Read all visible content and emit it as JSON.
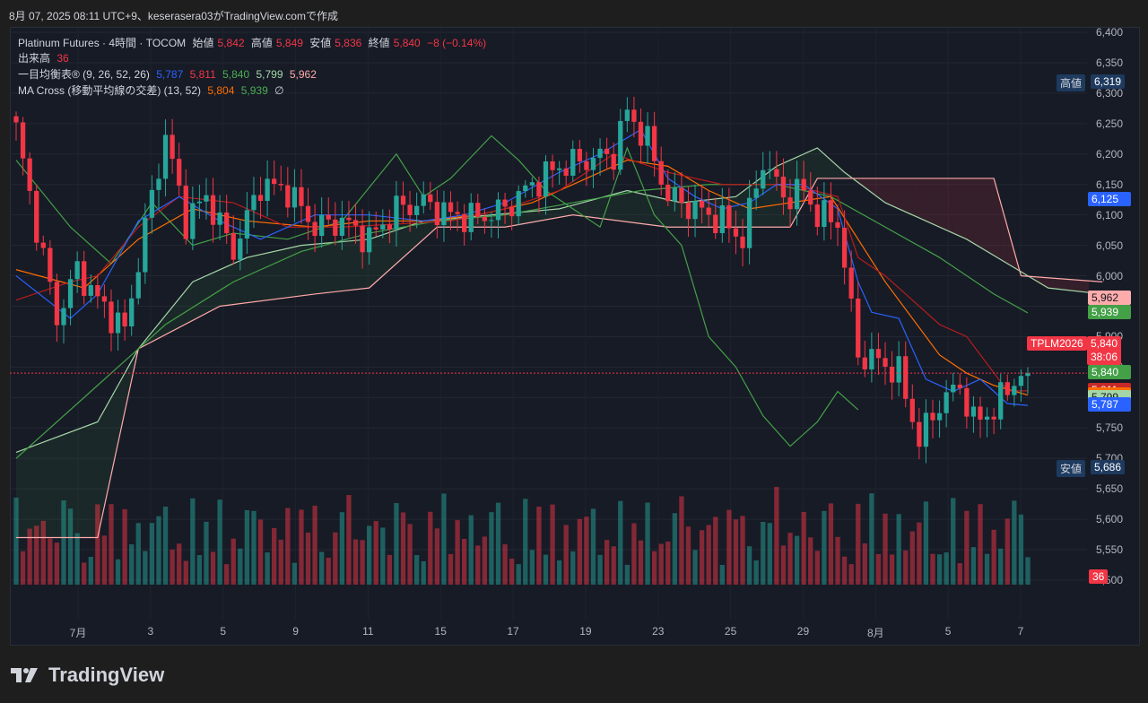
{
  "header": {
    "capture_line": "8月 07, 2025 08:11 UTC+9、keserasera03がTradingView.comで作成"
  },
  "legend": {
    "instrument": "Platinum Futures · 4時間 · TOCOM",
    "open_label": "始値",
    "open": "5,842",
    "high_label": "高値",
    "high": "5,849",
    "low_label": "安値",
    "low": "5,836",
    "close_label": "終値",
    "close": "5,840",
    "change": "−8 (−0.14%)",
    "volume_label": "出来高",
    "volume": "36",
    "ichimoku_label": "一目均衡表® (9, 26, 52, 26)",
    "ichimoku_vals": [
      "5,787",
      "5,811",
      "5,840",
      "5,799",
      "5,962"
    ],
    "ma_label": "MA Cross (移動平均線の交差) (13, 52)",
    "ma_vals": [
      "5,804",
      "5,939"
    ],
    "ma_extra": "∅"
  },
  "price_axis": {
    "ticks": [
      "6,400",
      "6,350",
      "6,300",
      "6,250",
      "6,200",
      "6,150",
      "6,100",
      "6,050",
      "6,000",
      "5,950",
      "5,900",
      "5,850",
      "5,800",
      "5,750",
      "5,700",
      "5,650",
      "5,600",
      "5,550",
      "5,500"
    ],
    "high_label": "高値",
    "high_value": "6,319",
    "low_label": "安値",
    "low_value": "5,686",
    "symbol_tag": "TPLM2026",
    "last_price": "5,840",
    "countdown": "38:06",
    "tags": [
      {
        "value": "6,125",
        "color": "#2962ff",
        "text_color": "#ffffff"
      },
      {
        "value": "5,962",
        "color": "#ffabab",
        "text_color": "#131722"
      },
      {
        "value": "5,939",
        "color": "#43a047",
        "text_color": "#ffffff"
      },
      {
        "value": "5,840",
        "color": "#43a047",
        "text_color": "#ffffff"
      },
      {
        "value": "5,811",
        "color": "#c62828",
        "text_color": "#ffffff"
      },
      {
        "value": "5,804",
        "color": "#ff6d00",
        "text_color": "#ffffff"
      },
      {
        "value": "5,799",
        "color": "#a5d6a7",
        "text_color": "#131722"
      },
      {
        "value": "5,787",
        "color": "#2962ff",
        "text_color": "#ffffff"
      }
    ],
    "volume_tag": "36"
  },
  "time_axis": {
    "labels": [
      "7月",
      "3",
      "5",
      "9",
      "11",
      "15",
      "17",
      "19",
      "23",
      "25",
      "29",
      "8月",
      "5",
      "7"
    ]
  },
  "brand": {
    "name": "TradingView"
  },
  "colors": {
    "up": "#26a69a",
    "down": "#f23645",
    "tenkan": "#2962ff",
    "kijun": "#b71c1c",
    "span_a": "#a5d6a7",
    "span_b": "#ffabab",
    "lagging": "#43a047",
    "ma_fast": "#ff6d00",
    "ma_slow": "#43a047",
    "background": "#171b26"
  },
  "chart_data": {
    "type": "candlestick",
    "timeframe": "4h",
    "ylim": [
      5500,
      6400
    ],
    "anchors": [
      {
        "t": 0,
        "p": 6240
      },
      {
        "t": 3,
        "p": 6080
      },
      {
        "t": 6,
        "p": 5930
      },
      {
        "t": 9,
        "p": 6010
      },
      {
        "t": 12,
        "p": 5960
      },
      {
        "t": 16,
        "p": 5910
      },
      {
        "t": 19,
        "p": 6080
      },
      {
        "t": 22,
        "p": 6230
      },
      {
        "t": 25,
        "p": 6090
      },
      {
        "t": 28,
        "p": 6130
      },
      {
        "t": 32,
        "p": 6040
      },
      {
        "t": 36,
        "p": 6150
      },
      {
        "t": 40,
        "p": 6140
      },
      {
        "t": 44,
        "p": 6080
      },
      {
        "t": 48,
        "p": 6090
      },
      {
        "t": 52,
        "p": 6060
      },
      {
        "t": 56,
        "p": 6110
      },
      {
        "t": 60,
        "p": 6120
      },
      {
        "t": 64,
        "p": 6100
      },
      {
        "t": 68,
        "p": 6095
      },
      {
        "t": 72,
        "p": 6110
      },
      {
        "t": 76,
        "p": 6150
      },
      {
        "t": 80,
        "p": 6180
      },
      {
        "t": 84,
        "p": 6190
      },
      {
        "t": 88,
        "p": 6200
      },
      {
        "t": 90,
        "p": 6270
      },
      {
        "t": 93,
        "p": 6220
      },
      {
        "t": 96,
        "p": 6130
      },
      {
        "t": 100,
        "p": 6110
      },
      {
        "t": 104,
        "p": 6090
      },
      {
        "t": 107,
        "p": 6060
      },
      {
        "t": 110,
        "p": 6190
      },
      {
        "t": 113,
        "p": 6130
      },
      {
        "t": 116,
        "p": 6140
      },
      {
        "t": 118,
        "p": 6100
      },
      {
        "t": 121,
        "p": 6090
      },
      {
        "t": 124,
        "p": 5870
      },
      {
        "t": 127,
        "p": 5860
      },
      {
        "t": 130,
        "p": 5840
      },
      {
        "t": 133,
        "p": 5730
      },
      {
        "t": 136,
        "p": 5790
      },
      {
        "t": 139,
        "p": 5820
      },
      {
        "t": 141,
        "p": 5760
      },
      {
        "t": 144,
        "p": 5780
      },
      {
        "t": 147,
        "p": 5830
      },
      {
        "t": 149,
        "p": 5840
      }
    ],
    "tenkan": [
      [
        0,
        6000
      ],
      [
        8,
        5930
      ],
      [
        12,
        5970
      ],
      [
        18,
        6090
      ],
      [
        24,
        6130
      ],
      [
        30,
        6090
      ],
      [
        36,
        6060
      ],
      [
        44,
        6100
      ],
      [
        52,
        6100
      ],
      [
        60,
        6090
      ],
      [
        66,
        6100
      ],
      [
        72,
        6120
      ],
      [
        80,
        6170
      ],
      [
        86,
        6200
      ],
      [
        92,
        6240
      ],
      [
        96,
        6160
      ],
      [
        100,
        6130
      ],
      [
        104,
        6110
      ],
      [
        108,
        6120
      ],
      [
        112,
        6150
      ],
      [
        116,
        6150
      ],
      [
        121,
        6110
      ],
      [
        124,
        5990
      ],
      [
        126,
        5940
      ],
      [
        130,
        5930
      ],
      [
        134,
        5830
      ],
      [
        138,
        5810
      ],
      [
        142,
        5830
      ],
      [
        146,
        5790
      ],
      [
        149,
        5787
      ]
    ],
    "kijun": [
      [
        0,
        5960
      ],
      [
        8,
        5990
      ],
      [
        12,
        6000
      ],
      [
        18,
        6080
      ],
      [
        24,
        6130
      ],
      [
        32,
        6120
      ],
      [
        40,
        6080
      ],
      [
        48,
        6080
      ],
      [
        56,
        6085
      ],
      [
        64,
        6090
      ],
      [
        72,
        6110
      ],
      [
        80,
        6140
      ],
      [
        88,
        6200
      ],
      [
        96,
        6170
      ],
      [
        104,
        6150
      ],
      [
        114,
        6150
      ],
      [
        121,
        6130
      ],
      [
        124,
        6030
      ],
      [
        128,
        6000
      ],
      [
        132,
        5960
      ],
      [
        136,
        5920
      ],
      [
        140,
        5900
      ],
      [
        146,
        5811
      ],
      [
        149,
        5811
      ]
    ],
    "span_a": [
      [
        0,
        5710
      ],
      [
        12,
        5760
      ],
      [
        18,
        5880
      ],
      [
        26,
        5990
      ],
      [
        34,
        6030
      ],
      [
        42,
        6050
      ],
      [
        52,
        6060
      ],
      [
        60,
        6090
      ],
      [
        70,
        6100
      ],
      [
        80,
        6110
      ],
      [
        90,
        6140
      ],
      [
        98,
        6120
      ],
      [
        106,
        6130
      ],
      [
        112,
        6180
      ],
      [
        118,
        6210
      ],
      [
        122,
        6170
      ],
      [
        128,
        6120
      ],
      [
        134,
        6090
      ],
      [
        140,
        6060
      ],
      [
        146,
        6020
      ],
      [
        152,
        5980
      ],
      [
        160,
        5970
      ]
    ],
    "span_b": [
      [
        0,
        5570
      ],
      [
        12,
        5570
      ],
      [
        18,
        5880
      ],
      [
        30,
        5950
      ],
      [
        44,
        5970
      ],
      [
        52,
        5980
      ],
      [
        62,
        6080
      ],
      [
        72,
        6080
      ],
      [
        82,
        6100
      ],
      [
        96,
        6080
      ],
      [
        114,
        6080
      ],
      [
        118,
        6160
      ],
      [
        130,
        6160
      ],
      [
        144,
        6160
      ],
      [
        148,
        6000
      ],
      [
        160,
        5990
      ]
    ],
    "lagging": [
      [
        0,
        6190
      ],
      [
        8,
        6080
      ],
      [
        14,
        6020
      ],
      [
        20,
        6120
      ],
      [
        26,
        6050
      ],
      [
        32,
        6070
      ],
      [
        40,
        6060
      ],
      [
        48,
        6090
      ],
      [
        56,
        6200
      ],
      [
        60,
        6130
      ],
      [
        64,
        6160
      ],
      [
        70,
        6230
      ],
      [
        74,
        6190
      ],
      [
        78,
        6140
      ],
      [
        82,
        6110
      ],
      [
        86,
        6080
      ],
      [
        90,
        6210
      ],
      [
        94,
        6100
      ],
      [
        98,
        6050
      ],
      [
        102,
        5900
      ],
      [
        106,
        5850
      ],
      [
        110,
        5770
      ],
      [
        114,
        5720
      ],
      [
        118,
        5760
      ],
      [
        121,
        5810
      ],
      [
        124,
        5780
      ]
    ],
    "ma_fast": [
      [
        0,
        6010
      ],
      [
        10,
        5980
      ],
      [
        18,
        6060
      ],
      [
        26,
        6110
      ],
      [
        34,
        6090
      ],
      [
        44,
        6080
      ],
      [
        52,
        6090
      ],
      [
        60,
        6090
      ],
      [
        68,
        6100
      ],
      [
        76,
        6120
      ],
      [
        84,
        6160
      ],
      [
        90,
        6190
      ],
      [
        96,
        6180
      ],
      [
        102,
        6140
      ],
      [
        108,
        6110
      ],
      [
        114,
        6120
      ],
      [
        120,
        6130
      ],
      [
        124,
        6060
      ],
      [
        128,
        5990
      ],
      [
        132,
        5930
      ],
      [
        136,
        5870
      ],
      [
        140,
        5840
      ],
      [
        144,
        5820
      ],
      [
        149,
        5804
      ]
    ],
    "ma_slow": [
      [
        0,
        5700
      ],
      [
        12,
        5820
      ],
      [
        22,
        5920
      ],
      [
        32,
        5990
      ],
      [
        42,
        6040
      ],
      [
        52,
        6070
      ],
      [
        62,
        6090
      ],
      [
        72,
        6100
      ],
      [
        82,
        6120
      ],
      [
        92,
        6140
      ],
      [
        102,
        6150
      ],
      [
        112,
        6150
      ],
      [
        120,
        6130
      ],
      [
        128,
        6080
      ],
      [
        136,
        6030
      ],
      [
        144,
        5970
      ],
      [
        149,
        5939
      ]
    ],
    "last_price": 5840
  }
}
